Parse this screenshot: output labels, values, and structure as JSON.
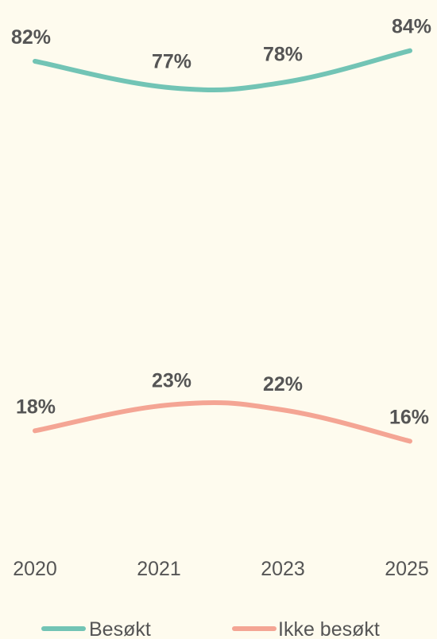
{
  "chart_data": {
    "type": "line",
    "title": "",
    "xlabel": "",
    "ylabel": "",
    "categories": [
      "2020",
      "2021",
      "2023",
      "2025"
    ],
    "ylim": [
      0,
      100
    ],
    "grid": false,
    "legend_position": "bottom",
    "series": [
      {
        "name": "Besøkt",
        "values": [
          82,
          77,
          78,
          84
        ],
        "labels": [
          "82%",
          "77%",
          "78%",
          "84%"
        ],
        "color": "#72C4B5"
      },
      {
        "name": "Ikke besøkt",
        "values": [
          18,
          23,
          22,
          16
        ],
        "labels": [
          "18%",
          "23%",
          "22%",
          "16%"
        ],
        "color": "#F4A594"
      }
    ]
  }
}
